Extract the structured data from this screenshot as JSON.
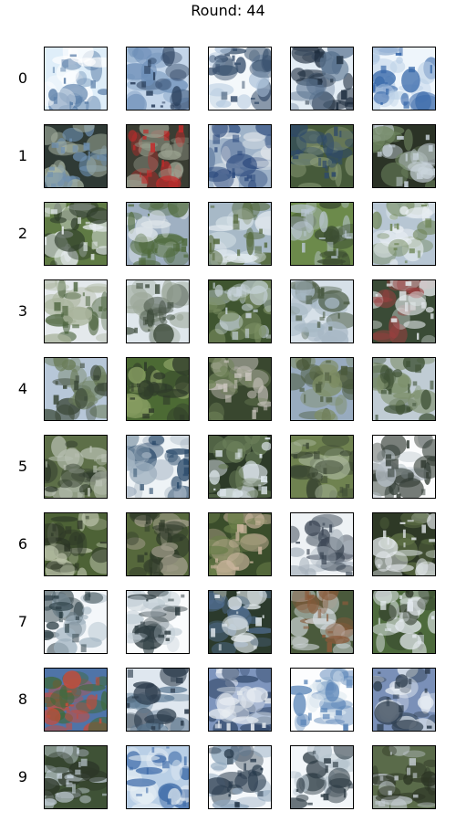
{
  "title": "Round: 44",
  "rows": [
    {
      "label": "0",
      "tiles": [
        [
          "#dfeef9",
          "#5a7ea8",
          "#ffffff"
        ],
        [
          "#c4d6ea",
          "#2a3f5c",
          "#6d8fb8"
        ],
        [
          "#f4f8fb",
          "#3c5370",
          "#aec4dc"
        ],
        [
          "#e3ecf4",
          "#1f2e3f",
          "#59728e"
        ],
        [
          "#eef5fb",
          "#3566a8",
          "#b9cfe6"
        ]
      ]
    },
    {
      "label": "1",
      "tiles": [
        [
          "#2f3a35",
          "#6d8fb0",
          "#a7b3a2"
        ],
        [
          "#3a3d33",
          "#c42a2a",
          "#9aa190"
        ],
        [
          "#9fb3c9",
          "#2d4b7e",
          "#e3e8ec"
        ],
        [
          "#465a3a",
          "#2e4a6b",
          "#8a9a76"
        ],
        [
          "#2b3326",
          "#c9d4dc",
          "#6f8660"
        ]
      ]
    },
    {
      "label": "2",
      "tiles": [
        [
          "#5f7a44",
          "#e6ecef",
          "#2e3c2a"
        ],
        [
          "#9fb0c2",
          "#4f6a3b",
          "#dfe6ea"
        ],
        [
          "#a7b9c7",
          "#566b3f",
          "#e2eaef"
        ],
        [
          "#6c8a4b",
          "#b9c7d2",
          "#3c4d32"
        ],
        [
          "#b7c6d3",
          "#6f8658",
          "#e8eef2"
        ]
      ]
    },
    {
      "label": "3",
      "tiles": [
        [
          "#e4e9ec",
          "#4e6640",
          "#a8b39b"
        ],
        [
          "#dfe7ec",
          "#3c4a3a",
          "#9ca89a"
        ],
        [
          "#3f5530",
          "#c7d3da",
          "#7e9265"
        ],
        [
          "#d6e0e8",
          "#495a42",
          "#a7b8c5"
        ],
        [
          "#3a4b36",
          "#e4e9ec",
          "#9a4040"
        ]
      ]
    },
    {
      "label": "4",
      "tiles": [
        [
          "#b7c7d8",
          "#3d4a3a",
          "#6b7d5a"
        ],
        [
          "#4c6a34",
          "#2f3b2a",
          "#8aa064"
        ],
        [
          "#39472f",
          "#c9c4bd",
          "#71845a"
        ],
        [
          "#98abbf",
          "#4b5a3d",
          "#7e8d64"
        ],
        [
          "#c0ccd4",
          "#3f5236",
          "#7c8f6a"
        ]
      ]
    },
    {
      "label": "5",
      "tiles": [
        [
          "#5d6f48",
          "#b7bfb2",
          "#2f3a2b"
        ],
        [
          "#eef3f6",
          "#2a4a6a",
          "#9fb0bf"
        ],
        [
          "#2c3a28",
          "#dfe8ee",
          "#6b7f5a"
        ],
        [
          "#6f8250",
          "#3b4733",
          "#a7b59a"
        ],
        [
          "#fbfcfd",
          "#323c34",
          "#b3bdc4"
        ]
      ]
    },
    {
      "label": "6",
      "tiles": [
        [
          "#4d6236",
          "#2c3526",
          "#b9c1a8"
        ],
        [
          "#56683c",
          "#2f3a29",
          "#a09c8a"
        ],
        [
          "#3a4d2b",
          "#c9b49c",
          "#6b7f4a"
        ],
        [
          "#eef2f5",
          "#3b4654",
          "#a8b3bd"
        ],
        [
          "#2e3926",
          "#e6ebef",
          "#5f7246"
        ]
      ]
    },
    {
      "label": "7",
      "tiles": [
        [
          "#f4f7fa",
          "#2f4148",
          "#9fb2bf"
        ],
        [
          "#fafcfd",
          "#2d3b40",
          "#c0ccd4"
        ],
        [
          "#2b3a2c",
          "#e7eef2",
          "#4e6a8a"
        ],
        [
          "#4a5a3c",
          "#8a5a3a",
          "#d6dde2"
        ],
        [
          "#4d6a3c",
          "#e3e9ee",
          "#2f3a2a"
        ]
      ]
    },
    {
      "label": "8",
      "tiles": [
        [
          "#4f74a8",
          "#c94b3a",
          "#3f6a3a"
        ],
        [
          "#dfe7ef",
          "#2c3c4c",
          "#5c7a94"
        ],
        [
          "#7e95bd",
          "#e8edf2",
          "#2f4566"
        ],
        [
          "#fcfdfe",
          "#5c86b8",
          "#d8e4ee"
        ],
        [
          "#7a90b8",
          "#2c3c4c",
          "#e6ecf2"
        ]
      ]
    },
    {
      "label": "9",
      "tiles": [
        [
          "#3f5236",
          "#c3cfd8",
          "#2c3628"
        ],
        [
          "#b9cfe6",
          "#3d6aa8",
          "#e6eef4"
        ],
        [
          "#f5f8fb",
          "#26384a",
          "#8fa6bc"
        ],
        [
          "#f2f6f9",
          "#2f3d46",
          "#b3c2cc"
        ],
        [
          "#5a6b4a",
          "#c4ccd2",
          "#2c3424"
        ]
      ]
    }
  ]
}
